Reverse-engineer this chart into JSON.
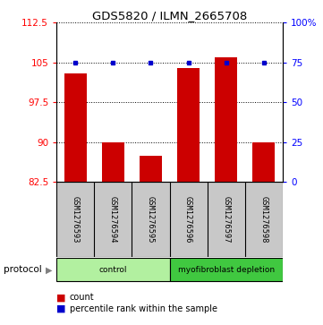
{
  "title": "GDS5820 / ILMN_2665708",
  "samples": [
    "GSM1276593",
    "GSM1276594",
    "GSM1276595",
    "GSM1276596",
    "GSM1276597",
    "GSM1276598"
  ],
  "counts": [
    103.0,
    90.0,
    87.5,
    104.0,
    106.0,
    90.0
  ],
  "percentile_ranks": [
    75,
    75,
    75,
    75,
    75,
    75
  ],
  "ylim_left": [
    82.5,
    112.5
  ],
  "ylim_right": [
    0,
    100
  ],
  "yticks_left": [
    82.5,
    90,
    97.5,
    105,
    112.5
  ],
  "yticks_right": [
    0,
    25,
    50,
    75,
    100
  ],
  "ytick_labels_left": [
    "82.5",
    "90",
    "97.5",
    "105",
    "112.5"
  ],
  "ytick_labels_right": [
    "0",
    "25",
    "50",
    "75",
    "100%"
  ],
  "groups": [
    {
      "label": "control",
      "indices": [
        0,
        1,
        2
      ],
      "color": "#b2f0a0"
    },
    {
      "label": "myofibroblast depletion",
      "indices": [
        3,
        4,
        5
      ],
      "color": "#40c840"
    }
  ],
  "bar_color": "#CC0000",
  "dot_color": "#0000CC",
  "bar_bottom": 82.5,
  "background_color": "#ffffff",
  "sample_box_color": "#C8C8C8",
  "protocol_label": "protocol",
  "legend_count_label": "count",
  "legend_percentile_label": "percentile rank within the sample"
}
